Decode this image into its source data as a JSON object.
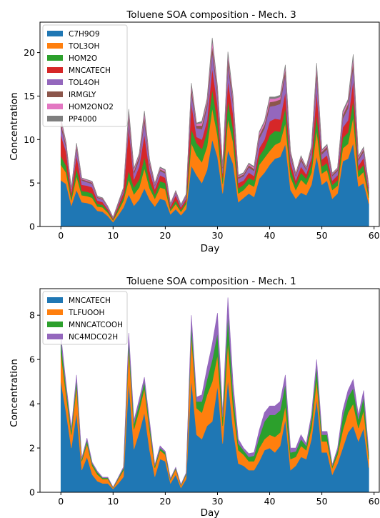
{
  "chart_data": [
    {
      "type": "area",
      "stacked": true,
      "title": "Toluene SOA composition - Mech. 3",
      "xlabel": "Day",
      "ylabel": "Concentration",
      "xlim": [
        -4,
        61
      ],
      "ylim": [
        0,
        23.5
      ],
      "xticks": [
        0,
        10,
        20,
        30,
        40,
        50,
        60
      ],
      "yticks": [
        0,
        5,
        10,
        15,
        20
      ],
      "legend_position": "top-left",
      "x": [
        0,
        1,
        2,
        3,
        4,
        5,
        6,
        7,
        8,
        9,
        10,
        11,
        12,
        13,
        14,
        15,
        16,
        17,
        18,
        19,
        20,
        21,
        22,
        23,
        24,
        25,
        26,
        27,
        28,
        29,
        30,
        31,
        32,
        33,
        34,
        35,
        36,
        37,
        38,
        39,
        40,
        41,
        42,
        43,
        44,
        45,
        46,
        47,
        48,
        49,
        50,
        51,
        52,
        53,
        54,
        55,
        56,
        57,
        58,
        59
      ],
      "series": [
        {
          "name": "C7H9O9",
          "color": "#1f77b4",
          "values": [
            5.3,
            4.9,
            2.4,
            4.2,
            2.8,
            2.7,
            2.5,
            1.8,
            1.7,
            1.2,
            0.5,
            1.3,
            2.2,
            3.7,
            2.4,
            3.1,
            4.4,
            3.1,
            2.3,
            3.2,
            3.0,
            1.4,
            2.0,
            1.3,
            2.0,
            7.0,
            5.9,
            5.0,
            6.5,
            10.0,
            8.0,
            3.8,
            8.8,
            7.2,
            2.8,
            3.3,
            3.8,
            3.4,
            5.5,
            6.2,
            7.1,
            7.8,
            8.0,
            9.5,
            4.2,
            3.2,
            3.9,
            3.6,
            4.8,
            8.1,
            4.8,
            5.3,
            3.2,
            3.8,
            7.5,
            7.8,
            9.6,
            4.6,
            5.0,
            2.6
          ]
        },
        {
          "name": "TOL3OH",
          "color": "#ff7f0e",
          "values": [
            1.8,
            1.3,
            0.6,
            1.6,
            0.8,
            0.8,
            0.8,
            0.5,
            0.5,
            0.4,
            0.2,
            0.5,
            0.8,
            1.7,
            1.3,
            1.4,
            2.3,
            1.3,
            0.9,
            1.3,
            1.3,
            0.4,
            0.6,
            0.4,
            0.6,
            2.6,
            2.3,
            2.4,
            2.7,
            3.6,
            2.5,
            1.1,
            3.6,
            2.5,
            1.0,
            0.9,
            1.1,
            1.2,
            1.6,
            1.7,
            1.6,
            1.6,
            1.7,
            2.4,
            1.5,
            1.0,
            1.5,
            1.2,
            1.4,
            3.0,
            1.3,
            1.2,
            1.0,
            0.9,
            1.5,
            1.7,
            3.0,
            1.1,
            1.3,
            0.7
          ]
        },
        {
          "name": "HOM2O",
          "color": "#2ca02c",
          "values": [
            1.0,
            0.8,
            0.4,
            0.9,
            0.5,
            0.5,
            0.5,
            0.3,
            0.3,
            0.2,
            0.1,
            0.3,
            0.4,
            1.0,
            0.8,
            0.9,
            1.3,
            0.8,
            0.5,
            0.7,
            0.7,
            0.2,
            0.4,
            0.2,
            0.3,
            1.6,
            1.4,
            1.5,
            1.7,
            2.2,
            1.5,
            0.7,
            2.1,
            1.5,
            0.6,
            0.6,
            0.7,
            0.7,
            1.0,
            1.1,
            1.8,
            1.6,
            1.2,
            1.8,
            0.9,
            0.6,
            0.8,
            0.7,
            0.9,
            1.8,
            0.8,
            0.8,
            0.6,
            0.6,
            1.2,
            1.3,
            1.9,
            0.7,
            0.8,
            0.4
          ]
        },
        {
          "name": "MNCATECH",
          "color": "#d62728",
          "values": [
            2.4,
            1.6,
            0.5,
            1.5,
            0.7,
            0.7,
            0.7,
            0.4,
            0.3,
            0.2,
            0.1,
            0.3,
            0.5,
            5.0,
            0.9,
            1.5,
            2.6,
            1.2,
            0.6,
            0.7,
            0.6,
            0.3,
            0.6,
            0.3,
            0.3,
            3.0,
            0.7,
            1.1,
            1.3,
            2.4,
            2.0,
            0.5,
            2.3,
            1.7,
            0.6,
            0.5,
            0.6,
            0.5,
            0.9,
            1.0,
            1.6,
            1.4,
            1.4,
            1.8,
            0.8,
            0.5,
            0.7,
            0.5,
            0.8,
            2.7,
            0.8,
            0.9,
            0.5,
            0.6,
            1.2,
            1.4,
            2.3,
            0.6,
            0.8,
            0.3
          ]
        },
        {
          "name": "TOL4OH",
          "color": "#9467bd",
          "values": [
            1.0,
            0.5,
            0.3,
            0.8,
            0.5,
            0.4,
            0.4,
            0.3,
            0.3,
            0.2,
            0.1,
            0.2,
            0.3,
            0.9,
            0.7,
            0.8,
            1.5,
            0.7,
            0.4,
            0.5,
            0.5,
            0.2,
            0.3,
            0.2,
            0.3,
            1.2,
            1.0,
            1.2,
            1.5,
            1.8,
            1.2,
            0.6,
            1.8,
            1.1,
            0.5,
            0.5,
            0.6,
            0.6,
            1.1,
            1.3,
            1.7,
            1.5,
            1.8,
            2.0,
            0.7,
            0.5,
            0.7,
            0.5,
            0.8,
            1.8,
            0.6,
            0.7,
            0.5,
            0.5,
            1.0,
            1.4,
            1.6,
            0.6,
            0.7,
            0.4
          ]
        },
        {
          "name": "IRMGLY",
          "color": "#8c564b",
          "values": [
            0.5,
            0.3,
            0.1,
            0.3,
            0.15,
            0.15,
            0.15,
            0.1,
            0.1,
            0.05,
            0.03,
            0.1,
            0.15,
            0.5,
            0.3,
            0.4,
            0.6,
            0.3,
            0.15,
            0.2,
            0.2,
            0.07,
            0.1,
            0.07,
            0.1,
            0.6,
            0.3,
            0.4,
            0.5,
            0.8,
            0.5,
            0.2,
            0.8,
            0.5,
            0.2,
            0.2,
            0.25,
            0.25,
            0.4,
            0.4,
            0.5,
            0.5,
            0.5,
            0.6,
            0.3,
            0.2,
            0.3,
            0.2,
            0.3,
            0.7,
            0.3,
            0.3,
            0.2,
            0.2,
            0.4,
            0.5,
            0.7,
            0.25,
            0.3,
            0.15
          ]
        },
        {
          "name": "HOM2ONO2",
          "color": "#e377c2",
          "values": [
            0.3,
            0.2,
            0.1,
            0.2,
            0.1,
            0.1,
            0.1,
            0.05,
            0.05,
            0.05,
            0.02,
            0.05,
            0.1,
            0.4,
            0.2,
            0.2,
            0.4,
            0.2,
            0.1,
            0.15,
            0.15,
            0.05,
            0.08,
            0.05,
            0.08,
            0.3,
            0.2,
            0.3,
            0.3,
            0.6,
            0.3,
            0.1,
            0.4,
            0.3,
            0.1,
            0.1,
            0.15,
            0.15,
            0.3,
            0.3,
            0.4,
            0.3,
            0.3,
            0.3,
            0.15,
            0.1,
            0.15,
            0.1,
            0.15,
            0.4,
            0.15,
            0.15,
            0.1,
            0.1,
            0.3,
            0.3,
            0.4,
            0.15,
            0.15,
            0.1
          ]
        },
        {
          "name": "PP4000",
          "color": "#7f7f7f",
          "values": [
            0.2,
            0.1,
            0.05,
            0.1,
            0.05,
            0.05,
            0.05,
            0.05,
            0.05,
            0.02,
            0.02,
            0.05,
            0.05,
            0.3,
            0.1,
            0.1,
            0.2,
            0.1,
            0.05,
            0.1,
            0.1,
            0.03,
            0.05,
            0.03,
            0.05,
            0.2,
            0.1,
            0.2,
            0.2,
            0.3,
            0.2,
            0.1,
            0.3,
            0.2,
            0.1,
            0.1,
            0.1,
            0.1,
            0.1,
            0.15,
            0.2,
            0.2,
            0.2,
            0.2,
            0.1,
            0.05,
            0.1,
            0.05,
            0.1,
            0.3,
            0.1,
            0.1,
            0.05,
            0.05,
            0.2,
            0.2,
            0.3,
            0.1,
            0.1,
            0.05
          ]
        }
      ]
    },
    {
      "type": "area",
      "stacked": true,
      "title": "Toluene SOA composition - Mech. 1",
      "xlabel": "Day",
      "ylabel": "Concentration",
      "xlim": [
        -4,
        61
      ],
      "ylim": [
        0,
        9.2
      ],
      "xticks": [
        0,
        10,
        20,
        30,
        40,
        50,
        60
      ],
      "yticks": [
        0,
        2,
        4,
        6,
        8
      ],
      "legend_position": "top-left",
      "x": [
        0,
        1,
        2,
        3,
        4,
        5,
        6,
        7,
        8,
        9,
        10,
        11,
        12,
        13,
        14,
        15,
        16,
        17,
        18,
        19,
        20,
        21,
        22,
        23,
        24,
        25,
        26,
        27,
        28,
        29,
        30,
        31,
        32,
        33,
        34,
        35,
        36,
        37,
        38,
        39,
        40,
        41,
        42,
        43,
        44,
        45,
        46,
        47,
        48,
        49,
        50,
        51,
        52,
        53,
        54,
        55,
        56,
        57,
        58,
        59
      ],
      "series": [
        {
          "name": "MNCATECH",
          "color": "#1f77b4",
          "values": [
            5.0,
            3.6,
            2.0,
            3.6,
            1.0,
            1.6,
            0.8,
            0.5,
            0.4,
            0.4,
            0.15,
            0.4,
            0.7,
            5.0,
            1.95,
            2.7,
            3.6,
            1.9,
            0.7,
            1.5,
            1.4,
            0.4,
            0.8,
            0.2,
            0.6,
            5.1,
            2.6,
            2.4,
            3.0,
            3.2,
            4.8,
            2.2,
            5.1,
            2.8,
            1.3,
            1.2,
            1.0,
            1.0,
            1.4,
            1.9,
            2.0,
            1.8,
            2.1,
            3.3,
            1.0,
            1.2,
            1.6,
            1.5,
            2.4,
            4.2,
            1.8,
            1.8,
            0.8,
            1.3,
            2.0,
            2.7,
            3.0,
            2.3,
            2.9,
            1.1
          ]
        },
        {
          "name": "TLFUOOH",
          "color": "#ff7f0e",
          "values": [
            1.3,
            0.8,
            0.6,
            1.2,
            0.4,
            0.6,
            0.4,
            0.3,
            0.2,
            0.2,
            0.05,
            0.2,
            0.3,
            1.5,
            0.9,
            1.0,
            1.1,
            0.9,
            0.4,
            0.4,
            0.3,
            0.15,
            0.25,
            0.1,
            0.2,
            2.0,
            1.2,
            1.2,
            1.4,
            1.8,
            1.4,
            0.8,
            1.7,
            1.0,
            0.6,
            0.5,
            0.4,
            0.4,
            0.6,
            0.5,
            0.6,
            0.7,
            0.6,
            0.6,
            0.5,
            0.4,
            0.5,
            0.4,
            0.5,
            0.9,
            0.5,
            0.5,
            0.3,
            0.4,
            0.8,
            0.9,
            1.0,
            0.6,
            0.8,
            0.4
          ]
        },
        {
          "name": "MNNCATCOOH",
          "color": "#2ca02c",
          "values": [
            0.5,
            0.3,
            0.2,
            0.3,
            0.1,
            0.15,
            0.1,
            0.1,
            0.05,
            0.05,
            0.02,
            0.05,
            0.1,
            0.4,
            0.25,
            0.3,
            0.3,
            0.25,
            0.1,
            0.1,
            0.1,
            0.05,
            0.05,
            0.03,
            0.05,
            0.5,
            0.3,
            0.5,
            0.7,
            1.0,
            1.0,
            0.4,
            1.2,
            0.6,
            0.3,
            0.2,
            0.2,
            0.25,
            0.5,
            0.8,
            0.9,
            1.0,
            1.0,
            1.0,
            0.3,
            0.25,
            0.3,
            0.2,
            0.4,
            0.6,
            0.3,
            0.3,
            0.1,
            0.2,
            0.6,
            0.7,
            0.7,
            0.4,
            0.6,
            0.2
          ]
        },
        {
          "name": "NC4MDCO2H",
          "color": "#9467bd",
          "values": [
            0.3,
            0.2,
            0.1,
            0.2,
            0.05,
            0.1,
            0.05,
            0.05,
            0.03,
            0.03,
            0.01,
            0.03,
            0.05,
            0.3,
            0.15,
            0.2,
            0.2,
            0.15,
            0.05,
            0.1,
            0.05,
            0.03,
            0.03,
            0.02,
            0.03,
            0.4,
            0.2,
            0.3,
            0.5,
            0.7,
            0.9,
            0.2,
            0.8,
            0.5,
            0.2,
            0.1,
            0.15,
            0.15,
            0.3,
            0.4,
            0.4,
            0.4,
            0.4,
            0.4,
            0.2,
            0.15,
            0.2,
            0.1,
            0.2,
            0.3,
            0.15,
            0.15,
            0.05,
            0.1,
            0.3,
            0.3,
            0.4,
            0.2,
            0.3,
            0.1
          ]
        }
      ]
    }
  ]
}
